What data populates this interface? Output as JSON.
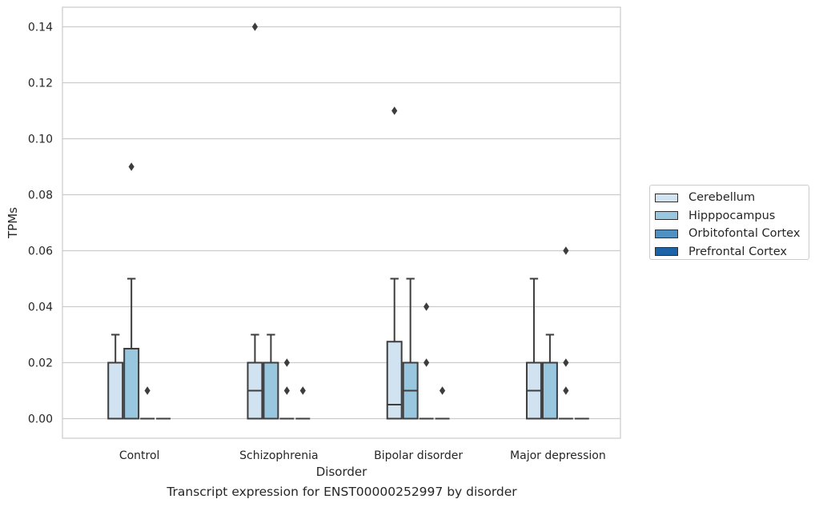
{
  "chart_data": {
    "type": "box",
    "title": "",
    "caption": "Transcript expression for ENST00000252997 by disorder",
    "xlabel": "Disorder",
    "ylabel": "TPMs",
    "ylim": [
      -0.007,
      0.147
    ],
    "yticks": [
      "0.00",
      "0.02",
      "0.04",
      "0.06",
      "0.08",
      "0.10",
      "0.12",
      "0.14"
    ],
    "grid": true,
    "legend_position": "right",
    "categories": [
      "Control",
      "Schizophrenia",
      "Bipolar disorder",
      "Major depression"
    ],
    "series": [
      {
        "name": "Cerebellum",
        "color": "#d1e2f1",
        "boxes": [
          {
            "category": "Control",
            "q1": 0.0,
            "median": 0.0,
            "q3": 0.02,
            "whisker_low": 0.0,
            "whisker_high": 0.03,
            "outliers": []
          },
          {
            "category": "Schizophrenia",
            "q1": 0.0,
            "median": 0.01,
            "q3": 0.02,
            "whisker_low": 0.0,
            "whisker_high": 0.03,
            "outliers": [
              0.14
            ]
          },
          {
            "category": "Bipolar disorder",
            "q1": 0.0,
            "median": 0.005,
            "q3": 0.0275,
            "whisker_low": 0.0,
            "whisker_high": 0.05,
            "outliers": [
              0.11
            ]
          },
          {
            "category": "Major depression",
            "q1": 0.0,
            "median": 0.01,
            "q3": 0.02,
            "whisker_low": 0.0,
            "whisker_high": 0.05,
            "outliers": []
          }
        ]
      },
      {
        "name": "Hipppocampus",
        "color": "#9ac7e0",
        "boxes": [
          {
            "category": "Control",
            "q1": 0.0,
            "median": 0.0,
            "q3": 0.025,
            "whisker_low": 0.0,
            "whisker_high": 0.05,
            "outliers": [
              0.09
            ]
          },
          {
            "category": "Schizophrenia",
            "q1": 0.0,
            "median": 0.0,
            "q3": 0.02,
            "whisker_low": 0.0,
            "whisker_high": 0.03,
            "outliers": []
          },
          {
            "category": "Bipolar disorder",
            "q1": 0.0,
            "median": 0.01,
            "q3": 0.02,
            "whisker_low": 0.0,
            "whisker_high": 0.05,
            "outliers": []
          },
          {
            "category": "Major depression",
            "q1": 0.0,
            "median": 0.0,
            "q3": 0.02,
            "whisker_low": 0.0,
            "whisker_high": 0.03,
            "outliers": []
          }
        ]
      },
      {
        "name": "Orbitofontal Cortex",
        "color": "#4f91c3",
        "boxes": [
          {
            "category": "Control",
            "q1": 0.0,
            "median": 0.0,
            "q3": 0.0,
            "whisker_low": 0.0,
            "whisker_high": 0.0,
            "outliers": [
              0.01
            ]
          },
          {
            "category": "Schizophrenia",
            "q1": 0.0,
            "median": 0.0,
            "q3": 0.0,
            "whisker_low": 0.0,
            "whisker_high": 0.0,
            "outliers": [
              0.01,
              0.02
            ]
          },
          {
            "category": "Bipolar disorder",
            "q1": 0.0,
            "median": 0.0,
            "q3": 0.0,
            "whisker_low": 0.0,
            "whisker_high": 0.0,
            "outliers": [
              0.02,
              0.04
            ]
          },
          {
            "category": "Major depression",
            "q1": 0.0,
            "median": 0.0,
            "q3": 0.0,
            "whisker_low": 0.0,
            "whisker_high": 0.0,
            "outliers": [
              0.01,
              0.02,
              0.06
            ]
          }
        ]
      },
      {
        "name": "Prefrontal Cortex",
        "color": "#1c63a7",
        "boxes": [
          {
            "category": "Control",
            "q1": 0.0,
            "median": 0.0,
            "q3": 0.0,
            "whisker_low": 0.0,
            "whisker_high": 0.0,
            "outliers": []
          },
          {
            "category": "Schizophrenia",
            "q1": 0.0,
            "median": 0.0,
            "q3": 0.0,
            "whisker_low": 0.0,
            "whisker_high": 0.0,
            "outliers": [
              0.01
            ]
          },
          {
            "category": "Bipolar disorder",
            "q1": 0.0,
            "median": 0.0,
            "q3": 0.0,
            "whisker_low": 0.0,
            "whisker_high": 0.0,
            "outliers": [
              0.01
            ]
          },
          {
            "category": "Major depression",
            "q1": 0.0,
            "median": 0.0,
            "q3": 0.0,
            "whisker_low": 0.0,
            "whisker_high": 0.0,
            "outliers": []
          }
        ]
      }
    ]
  }
}
